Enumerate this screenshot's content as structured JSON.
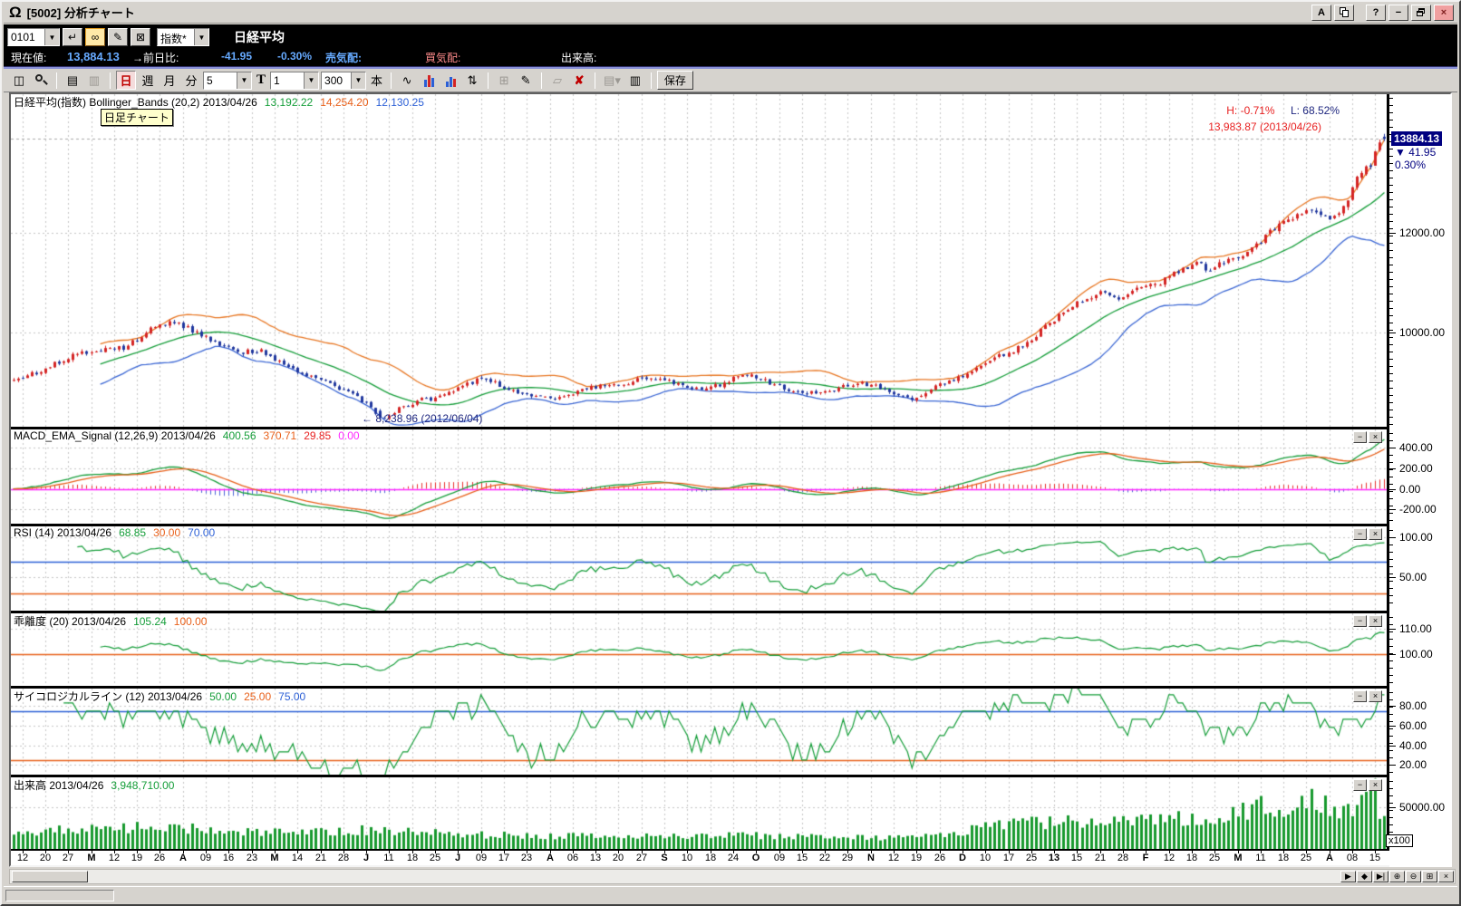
{
  "window": {
    "title": "[5002] 分析チャート",
    "buttons": {
      "font": "A",
      "help": "?",
      "minimize": "−",
      "close": "×"
    }
  },
  "quote_bar": {
    "code_value": "0101",
    "index_select": "指数*",
    "symbol_name": "日経平均",
    "current_label": "現在値:",
    "current_value": "13,884.13",
    "change_label": "→前日比:",
    "change_value": "-41.95",
    "change_pct": "-0.30%",
    "ask_label": "売気配:",
    "bid_label": "買気配:",
    "volume_label": "出来高:"
  },
  "toolbar": {
    "day": "日",
    "week": "週",
    "month": "月",
    "minute": "分",
    "interval_value": "5",
    "t_label": "T",
    "t_value": "1",
    "bars_value": "300",
    "unit_label": "本",
    "save_label": "保存"
  },
  "panels": {
    "main": {
      "title": "日経平均(指数) Bollinger_Bands (20,2) 2013/04/26",
      "values": [
        "13,192.22",
        "14,254.20",
        "12,130.25"
      ],
      "value_colors": [
        "green",
        "orange",
        "blue"
      ],
      "tooltip": "日足チャート",
      "high_label": "H: -0.71%",
      "low_label": "L: 68.52%",
      "peak_annotation": "13,983.87 (2013/04/26)",
      "trough_annotation": "← 8,238.96 (2012/06/04)",
      "price_box": "13884.13",
      "price_change": "▼  41.95",
      "price_pct": "0.30%",
      "axis": [
        "12000.00",
        "10000.00"
      ]
    },
    "macd": {
      "title": "MACD_EMA_Signal (12,26,9) 2013/04/26",
      "values": [
        "400.56",
        "370.71",
        "29.85",
        "0.00"
      ],
      "value_colors": [
        "green",
        "orange",
        "red",
        "magenta"
      ],
      "axis": [
        "400.00",
        "200.00",
        "0.00",
        "-200.00"
      ]
    },
    "rsi": {
      "title": "RSI (14) 2013/04/26",
      "values": [
        "68.85",
        "30.00",
        "70.00"
      ],
      "value_colors": [
        "green",
        "orange",
        "blue"
      ],
      "axis": [
        "100.00",
        "50.00"
      ]
    },
    "kairi": {
      "title": "乖離度 (20) 2013/04/26",
      "values": [
        "105.24",
        "100.00"
      ],
      "value_colors": [
        "green",
        "orange"
      ],
      "axis": [
        "110.00",
        "100.00"
      ]
    },
    "psych": {
      "title": "サイコロジカルライン (12) 2013/04/26",
      "values": [
        "50.00",
        "25.00",
        "75.00"
      ],
      "value_colors": [
        "green",
        "orange",
        "blue"
      ],
      "axis": [
        "80.00",
        "60.00",
        "40.00",
        "20.00"
      ]
    },
    "volume": {
      "title": "出来高 2013/04/26",
      "values": [
        "3,948,710.00"
      ],
      "value_colors": [
        "green"
      ],
      "axis": [
        "50000.00"
      ],
      "unit_box": "x100"
    }
  },
  "x_axis": {
    "labels": [
      "12",
      "20",
      "27",
      "M",
      "12",
      "19",
      "26",
      "A",
      "09",
      "16",
      "23",
      "M",
      "14",
      "21",
      "28",
      "J",
      "11",
      "18",
      "25",
      "J",
      "09",
      "17",
      "23",
      "A",
      "06",
      "13",
      "20",
      "27",
      "S",
      "10",
      "18",
      "24",
      "O",
      "09",
      "15",
      "22",
      "29",
      "N",
      "12",
      "19",
      "26",
      "D",
      "10",
      "17",
      "25",
      "13",
      "15",
      "21",
      "28",
      "F",
      "12",
      "18",
      "25",
      "M",
      "11",
      "18",
      "25",
      "A",
      "08",
      "15"
    ],
    "bold_indices": [
      3,
      7,
      11,
      15,
      19,
      23,
      28,
      32,
      37,
      41,
      45,
      49,
      53,
      57
    ]
  },
  "scrollbar": {
    "buttons": [
      "▶",
      "◆",
      "▶|",
      "⊕",
      "⊖",
      "⊞",
      "×"
    ]
  },
  "colors": {
    "green": "#169e3a",
    "orange": "#e8601a",
    "red": "#e82222",
    "magenta": "#ff28ff",
    "blue": "#2b5fd6",
    "navy": "#000080",
    "cyan": "#66aaff",
    "salmon": "#ff8c8c",
    "up_candle": "#d42424",
    "down_candle": "#20379e",
    "bb_upper": "#e87622",
    "bb_mid": "#169e3a",
    "bb_lower": "#3a66d4",
    "macd_line": "#169e3a",
    "signal_line": "#e8601a",
    "hist_pos": "#e83030",
    "hist_neg": "#4a62d8",
    "zero_line": "#ff28ff",
    "indicator_line": "#169e3a",
    "band_high": "#2b5fd6",
    "band_low": "#e8601a",
    "volume_bar": "#18992e",
    "grid": "#c6c6c6",
    "ann_red": "#e82222",
    "ann_navy": "#202880"
  },
  "chart_data": {
    "type": "candlestick",
    "symbol": "日経平均 (Nikkei 225 index)",
    "timeframe": "daily",
    "bars": 300,
    "date_range": [
      "2012-02",
      "2013-04-26"
    ],
    "last_bar": {
      "date": "2013/04/26",
      "close": 13884.13,
      "change": -41.95,
      "day_high": 13983.87,
      "annotated_low": 8238.96,
      "annotated_low_date": "2012/06/04",
      "volume": 3948710
    },
    "indicators": {
      "bollinger": {
        "period": 20,
        "sigma": 2,
        "mid": 13192.22,
        "upper": 14254.2,
        "lower": 12130.25
      },
      "macd": {
        "fast": 12,
        "slow": 26,
        "signal": 9,
        "macd": 400.56,
        "signal_value": 370.71,
        "osc": 29.85
      },
      "rsi": {
        "period": 14,
        "value": 68.85,
        "lower_band": 30.0,
        "upper_band": 70.0
      },
      "kairi": {
        "period": 20,
        "value": 105.24,
        "base": 100.0
      },
      "psychological": {
        "period": 12,
        "value": 50.0,
        "lower_band": 25.0,
        "upper_band": 75.0
      },
      "volume_unit": "x100"
    },
    "price_anchors": [
      [
        0,
        9030
      ],
      [
        6,
        9230
      ],
      [
        12,
        9500
      ],
      [
        18,
        9620
      ],
      [
        24,
        9700
      ],
      [
        30,
        10050
      ],
      [
        34,
        10220
      ],
      [
        38,
        10080
      ],
      [
        44,
        9780
      ],
      [
        50,
        9600
      ],
      [
        54,
        9650
      ],
      [
        58,
        9380
      ],
      [
        63,
        9120
      ],
      [
        68,
        9020
      ],
      [
        73,
        8800
      ],
      [
        77,
        8580
      ],
      [
        80,
        8250
      ],
      [
        84,
        8450
      ],
      [
        88,
        8620
      ],
      [
        93,
        8700
      ],
      [
        97,
        8880
      ],
      [
        101,
        9050
      ],
      [
        105,
        8980
      ],
      [
        109,
        8800
      ],
      [
        113,
        8720
      ],
      [
        117,
        8650
      ],
      [
        121,
        8720
      ],
      [
        125,
        8850
      ],
      [
        129,
        8920
      ],
      [
        133,
        8960
      ],
      [
        137,
        9100
      ],
      [
        141,
        9060
      ],
      [
        145,
        8940
      ],
      [
        149,
        8840
      ],
      [
        153,
        8920
      ],
      [
        157,
        9070
      ],
      [
        161,
        9120
      ],
      [
        165,
        8980
      ],
      [
        169,
        8840
      ],
      [
        173,
        8760
      ],
      [
        177,
        8820
      ],
      [
        181,
        8910
      ],
      [
        185,
        8960
      ],
      [
        189,
        8880
      ],
      [
        193,
        8690
      ],
      [
        197,
        8680
      ],
      [
        201,
        8920
      ],
      [
        205,
        9060
      ],
      [
        209,
        9230
      ],
      [
        213,
        9450
      ],
      [
        217,
        9560
      ],
      [
        221,
        9780
      ],
      [
        225,
        10100
      ],
      [
        229,
        10390
      ],
      [
        233,
        10620
      ],
      [
        237,
        10800
      ],
      [
        241,
        10710
      ],
      [
        245,
        10870
      ],
      [
        249,
        10940
      ],
      [
        253,
        11170
      ],
      [
        257,
        11380
      ],
      [
        261,
        11270
      ],
      [
        265,
        11420
      ],
      [
        269,
        11580
      ],
      [
        273,
        11920
      ],
      [
        277,
        12260
      ],
      [
        281,
        12380
      ],
      [
        284,
        12470
      ],
      [
        287,
        12320
      ],
      [
        290,
        12480
      ],
      [
        292,
        12930
      ],
      [
        294,
        13220
      ],
      [
        296,
        13380
      ],
      [
        298,
        13870
      ],
      [
        299,
        13884
      ]
    ],
    "volume_anchors": [
      [
        0,
        21000
      ],
      [
        30,
        26000
      ],
      [
        60,
        19000
      ],
      [
        80,
        23000
      ],
      [
        100,
        17000
      ],
      [
        130,
        14500
      ],
      [
        160,
        16000
      ],
      [
        190,
        13500
      ],
      [
        205,
        19000
      ],
      [
        215,
        28000
      ],
      [
        225,
        32000
      ],
      [
        235,
        34000
      ],
      [
        245,
        33000
      ],
      [
        255,
        37000
      ],
      [
        265,
        39000
      ],
      [
        273,
        52000
      ],
      [
        278,
        42000
      ],
      [
        283,
        58000
      ],
      [
        288,
        45000
      ],
      [
        292,
        50000
      ],
      [
        295,
        62000
      ],
      [
        297,
        76000
      ],
      [
        298,
        50000
      ],
      [
        299,
        39487
      ]
    ],
    "axes": {
      "main": {
        "range": [
          8100,
          14780
        ],
        "grid": [
          12000,
          10000
        ],
        "labels": [
          12000,
          10000
        ],
        "current": 13884.13
      },
      "macd": {
        "range": [
          -340,
          580
        ],
        "grid": [
          400,
          200,
          -200
        ],
        "labels": [
          400,
          200,
          0,
          -200
        ],
        "zero": 0
      },
      "rsi": {
        "range": [
          8,
          114
        ],
        "grid": [
          100,
          50
        ],
        "labels": [
          100,
          50
        ],
        "bands": [
          70,
          30
        ]
      },
      "kairi": {
        "range": [
          87.5,
          116
        ],
        "grid": [
          110
        ],
        "labels": [
          110,
          100
        ],
        "bands": [
          100
        ]
      },
      "psych": {
        "range": [
          10,
          98
        ],
        "grid": [
          80,
          60,
          40,
          20
        ],
        "labels": [
          80,
          60,
          40,
          20
        ],
        "bands": [
          75,
          25
        ]
      },
      "volume": {
        "range": [
          0,
          86000
        ],
        "grid": [
          50000
        ],
        "labels": [
          50000
        ]
      }
    }
  }
}
